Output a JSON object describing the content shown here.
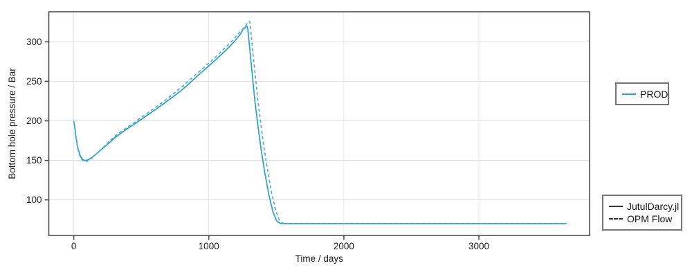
{
  "figure": {
    "background": "#ffffff",
    "accent_color": "#2ea0c3",
    "frame_color": "#4f4f4f",
    "grid_color_h": "#dcdcdc",
    "grid_color_v": "#e7e7e7",
    "text_color": "#1a1a1a"
  },
  "chart_data": {
    "type": "line",
    "title": "",
    "xlabel": "Time / days",
    "ylabel": "Bottom hole pressure / Bar",
    "xlim": [
      -185,
      3820
    ],
    "ylim": [
      55,
      338
    ],
    "xticks": [
      0,
      1000,
      2000,
      3000
    ],
    "yticks": [
      100,
      150,
      200,
      250,
      300
    ],
    "grid": true,
    "legend_position": "right-outside",
    "well_legend": {
      "label": "PROD",
      "color": "#2ea0c3"
    },
    "style_legend": [
      {
        "label": "JutulDarcy.jl",
        "style": "solid"
      },
      {
        "label": "OPM Flow",
        "style": "dashed"
      }
    ],
    "series": [
      {
        "name": "JutulDarcy.jl",
        "style": "solid",
        "color": "#2b9fc3",
        "points": [
          [
            0,
            200
          ],
          [
            8,
            191
          ],
          [
            18,
            178
          ],
          [
            30,
            166
          ],
          [
            42,
            158.5
          ],
          [
            55,
            153.5
          ],
          [
            68,
            151
          ],
          [
            82,
            150
          ],
          [
            100,
            150.3
          ],
          [
            125,
            152.5
          ],
          [
            155,
            156.5
          ],
          [
            190,
            161.5
          ],
          [
            230,
            167.5
          ],
          [
            270,
            173.5
          ],
          [
            310,
            179.5
          ],
          [
            355,
            185
          ],
          [
            400,
            190.5
          ],
          [
            450,
            196
          ],
          [
            500,
            202
          ],
          [
            560,
            209
          ],
          [
            620,
            216
          ],
          [
            680,
            223.5
          ],
          [
            740,
            231
          ],
          [
            800,
            239
          ],
          [
            860,
            248
          ],
          [
            920,
            257.5
          ],
          [
            980,
            266.5
          ],
          [
            1040,
            275.5
          ],
          [
            1100,
            285
          ],
          [
            1160,
            295
          ],
          [
            1205,
            303.5
          ],
          [
            1235,
            310
          ],
          [
            1252,
            315.5
          ],
          [
            1260,
            317.5
          ],
          [
            1266,
            317
          ],
          [
            1274,
            319
          ],
          [
            1282,
            320
          ],
          [
            1290,
            315
          ],
          [
            1302,
            293
          ],
          [
            1322,
            258
          ],
          [
            1342,
            224
          ],
          [
            1365,
            192
          ],
          [
            1390,
            161
          ],
          [
            1415,
            134
          ],
          [
            1445,
            106
          ],
          [
            1475,
            85
          ],
          [
            1502,
            73.5
          ],
          [
            1528,
            70.3
          ],
          [
            1560,
            70
          ],
          [
            1650,
            70
          ],
          [
            1800,
            70
          ],
          [
            2000,
            70
          ],
          [
            2250,
            70
          ],
          [
            2500,
            70
          ],
          [
            2750,
            70
          ],
          [
            3000,
            70
          ],
          [
            3250,
            70
          ],
          [
            3500,
            70
          ],
          [
            3650,
            70
          ]
        ]
      },
      {
        "name": "OPM Flow",
        "style": "dashed",
        "color": "#4fb0cf",
        "points": [
          [
            0,
            200
          ],
          [
            8,
            190
          ],
          [
            18,
            177
          ],
          [
            30,
            164.5
          ],
          [
            42,
            157
          ],
          [
            55,
            152
          ],
          [
            68,
            149.5
          ],
          [
            82,
            148.5
          ],
          [
            100,
            149
          ],
          [
            125,
            151.5
          ],
          [
            155,
            156
          ],
          [
            190,
            162
          ],
          [
            230,
            168.5
          ],
          [
            270,
            175
          ],
          [
            310,
            181.5
          ],
          [
            355,
            187
          ],
          [
            400,
            192.5
          ],
          [
            450,
            198
          ],
          [
            500,
            204.5
          ],
          [
            560,
            211.5
          ],
          [
            620,
            219
          ],
          [
            680,
            226.5
          ],
          [
            740,
            234.5
          ],
          [
            800,
            243
          ],
          [
            860,
            252
          ],
          [
            920,
            261
          ],
          [
            980,
            270
          ],
          [
            1040,
            279
          ],
          [
            1100,
            289
          ],
          [
            1160,
            299
          ],
          [
            1210,
            308.5
          ],
          [
            1248,
            315.5
          ],
          [
            1275,
            321
          ],
          [
            1295,
            325.5
          ],
          [
            1302,
            326
          ],
          [
            1310,
            317
          ],
          [
            1322,
            294
          ],
          [
            1342,
            260
          ],
          [
            1362,
            228
          ],
          [
            1385,
            196
          ],
          [
            1410,
            165
          ],
          [
            1436,
            137
          ],
          [
            1465,
            109
          ],
          [
            1495,
            87
          ],
          [
            1522,
            74.5
          ],
          [
            1548,
            70.5
          ],
          [
            1580,
            70
          ],
          [
            1700,
            70
          ],
          [
            1900,
            70
          ],
          [
            2150,
            70
          ],
          [
            2400,
            70
          ],
          [
            2650,
            70
          ],
          [
            2900,
            70
          ],
          [
            3150,
            70
          ],
          [
            3400,
            70
          ],
          [
            3650,
            70
          ]
        ]
      }
    ]
  }
}
